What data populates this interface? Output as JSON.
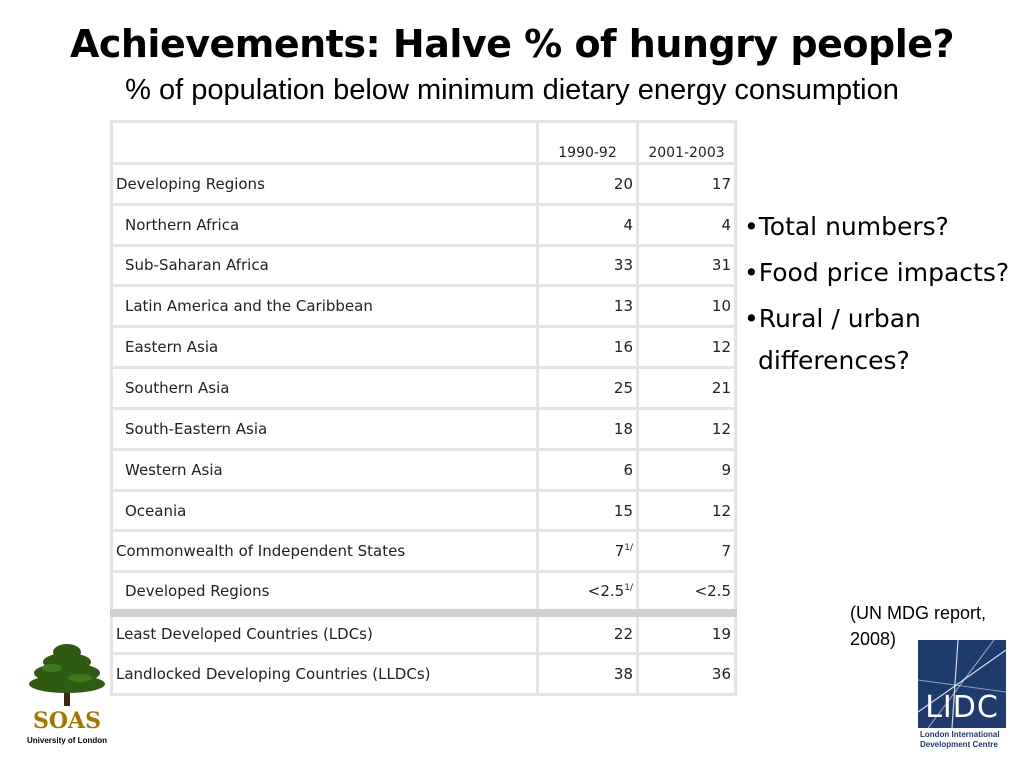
{
  "title": "Achievements: Halve % of hungry people?",
  "subtitle": "% of population below minimum dietary energy consumption",
  "table": {
    "headers": [
      "",
      "1990-92",
      "2001-2003"
    ],
    "rows": [
      {
        "label": "Developing Regions",
        "v1": "20",
        "v2": "17"
      },
      {
        "label": "Northern  Africa",
        "v1": "4",
        "v2": "4"
      },
      {
        "label": "Sub-Saharan Africa",
        "v1": "33",
        "v2": "31"
      },
      {
        "label": "Latin America and the Caribbean",
        "v1": "13",
        "v2": "10"
      },
      {
        "label": "Eastern Asia",
        "v1": "16",
        "v2": "12"
      },
      {
        "label": "Southern Asia",
        "v1": "25",
        "v2": "21"
      },
      {
        "label": "South-Eastern Asia",
        "v1": "18",
        "v2": "12"
      },
      {
        "label": "Western Asia",
        "v1": "6",
        "v2": "9"
      },
      {
        "label": "Oceania",
        "v1": "15",
        "v2": "12"
      },
      {
        "label": "Commonwealth of Independent States",
        "v1": "7",
        "v1_note": "1/",
        "v2": "7"
      },
      {
        "label": "Developed Regions",
        "v1": "<2.5",
        "v1_note": "1/",
        "v2": "<2.5"
      },
      {
        "label": "Least Developed Countries (LDCs)",
        "v1": "22",
        "v2": "19"
      },
      {
        "label": "Landlocked Developing Countries (LLDCs)",
        "v1": "38",
        "v2": "36"
      }
    ]
  },
  "bullets": [
    "•Total numbers?",
    "•Food price impacts?",
    "•Rural / urban differences?"
  ],
  "citation": "(UN MDG report, 2008)",
  "soas_logo": {
    "name": "SOAS",
    "subtitle": "University of London",
    "icon": "tree-icon",
    "color": "#a07800"
  },
  "lidc_logo": {
    "letters": "LIDC",
    "subtitle_line1": "London International",
    "subtitle_line2": "Development Centre",
    "color": "#1f3b6e"
  }
}
